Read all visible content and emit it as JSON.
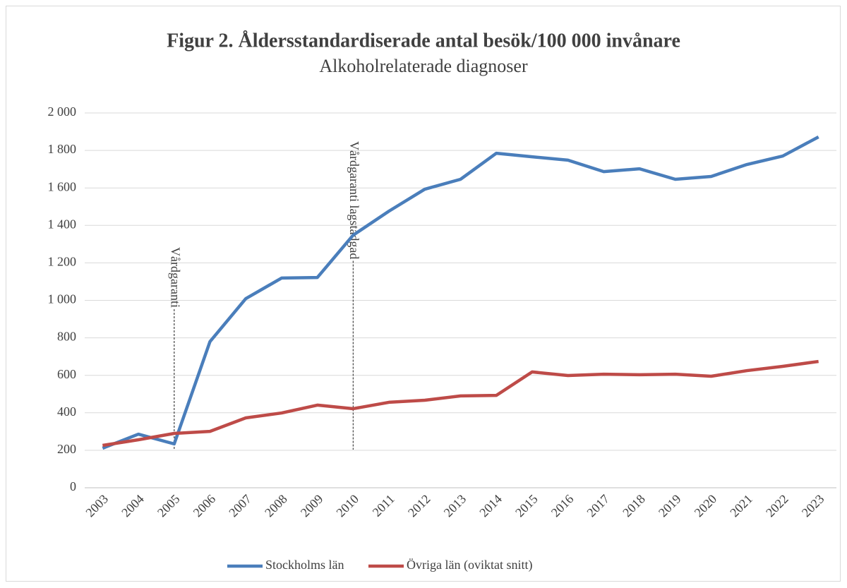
{
  "chart_data": {
    "type": "line",
    "title": "Figur 2. Åldersstandardiserade antal besök/100 000 invånare",
    "subtitle": "Alkoholrelaterade diagnoser",
    "categories": [
      "2003",
      "2004",
      "2005",
      "2006",
      "2007",
      "2008",
      "2009",
      "2010",
      "2011",
      "2012",
      "2013",
      "2014",
      "2015",
      "2016",
      "2017",
      "2018",
      "2019",
      "2020",
      "2021",
      "2022",
      "2023"
    ],
    "series": [
      {
        "name": "Stockholms län",
        "color": "#4a7ebb",
        "values": [
          211,
          286,
          234,
          780,
          1009,
          1119,
          1122,
          1348,
          1476,
          1593,
          1646,
          1785,
          1766,
          1748,
          1687,
          1702,
          1646,
          1661,
          1725,
          1770,
          1872
        ]
      },
      {
        "name": "Övriga län (oviktat snitt)",
        "color": "#be4b48",
        "values": [
          226,
          256,
          290,
          301,
          373,
          399,
          441,
          422,
          456,
          467,
          490,
          493,
          618,
          599,
          606,
          603,
          606,
          595,
          625,
          648,
          674
        ]
      }
    ],
    "ylim": [
      0,
      2000
    ],
    "yticks": [
      0,
      200,
      400,
      600,
      800,
      {
        "value": 1000,
        "label": "1 000"
      },
      {
        "value": 1200,
        "label": "1 200"
      },
      {
        "value": 1400,
        "label": "1 400"
      },
      {
        "value": 1600,
        "label": "1 600"
      },
      {
        "value": 1800,
        "label": "1 800"
      },
      {
        "value": 2000,
        "label": "2 000"
      }
    ],
    "grid": true,
    "legend": "bottom",
    "annotations": [
      {
        "text": "Vårdgaranti",
        "x": "2005"
      },
      {
        "text": "Vårdgaranti lagstadgad",
        "x": "2010"
      }
    ]
  }
}
